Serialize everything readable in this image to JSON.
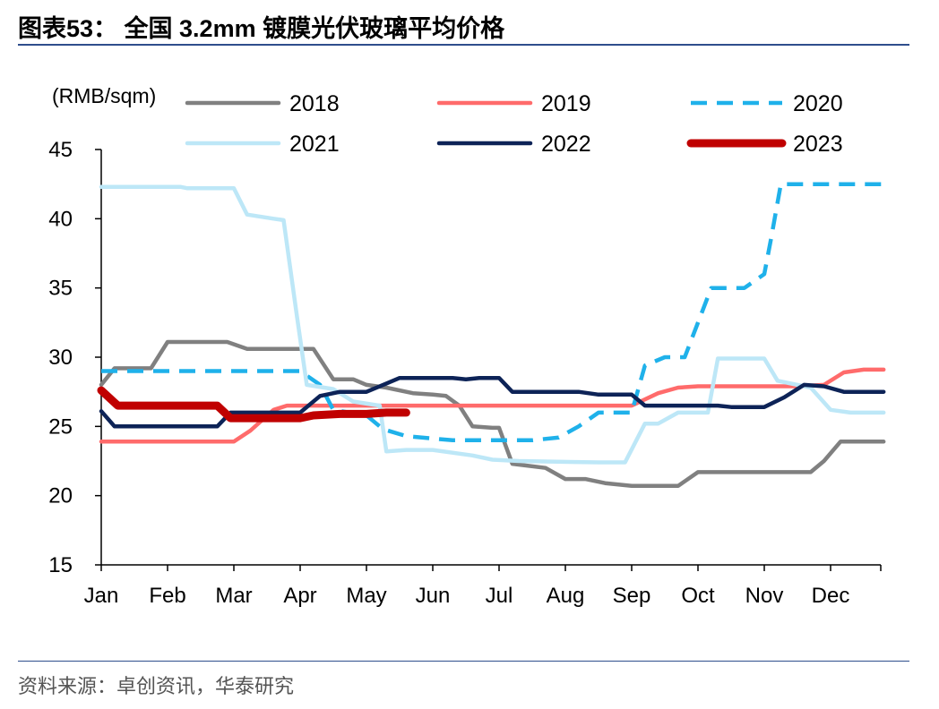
{
  "title": "图表53：  全国 3.2mm 镀膜光伏玻璃平均价格",
  "source": "资料来源：卓创资讯，华泰研究",
  "chart_data": {
    "type": "line",
    "ylabel": "(RMB/sqm)",
    "ylim": [
      15,
      45
    ],
    "yticks": [
      "15",
      "20",
      "25",
      "30",
      "35",
      "40",
      "45"
    ],
    "xlim": [
      0,
      11.8
    ],
    "xticks": [
      "Jan",
      "Feb",
      "Mar",
      "Apr",
      "May",
      "Jun",
      "Jul",
      "Aug",
      "Sep",
      "Oct",
      "Nov",
      "Dec"
    ],
    "grid": false,
    "legend": "top",
    "series": [
      {
        "name": "2018",
        "color": "#808080",
        "dash": false,
        "width": 4.5,
        "points": [
          [
            0,
            28.0
          ],
          [
            0.2,
            29.2
          ],
          [
            0.75,
            29.2
          ],
          [
            1.0,
            31.1
          ],
          [
            1.9,
            31.1
          ],
          [
            2.2,
            30.6
          ],
          [
            3.2,
            30.6
          ],
          [
            3.5,
            28.4
          ],
          [
            3.8,
            28.4
          ],
          [
            4.0,
            28.0
          ],
          [
            4.3,
            27.8
          ],
          [
            4.7,
            27.4
          ],
          [
            5.0,
            27.3
          ],
          [
            5.2,
            27.2
          ],
          [
            5.4,
            26.5
          ],
          [
            5.6,
            25.0
          ],
          [
            5.9,
            24.9
          ],
          [
            6.0,
            24.9
          ],
          [
            6.2,
            22.3
          ],
          [
            6.7,
            22.0
          ],
          [
            7.0,
            21.2
          ],
          [
            7.3,
            21.2
          ],
          [
            7.6,
            20.9
          ],
          [
            8.0,
            20.7
          ],
          [
            8.7,
            20.7
          ],
          [
            9.0,
            21.7
          ],
          [
            10.7,
            21.7
          ],
          [
            10.9,
            22.5
          ],
          [
            11.15,
            23.9
          ],
          [
            11.8,
            23.9
          ]
        ]
      },
      {
        "name": "2019",
        "color": "#ff6b6b",
        "dash": false,
        "width": 4.5,
        "points": [
          [
            0,
            23.9
          ],
          [
            2.0,
            23.9
          ],
          [
            2.25,
            24.7
          ],
          [
            2.6,
            26.2
          ],
          [
            2.8,
            26.5
          ],
          [
            8.0,
            26.5
          ],
          [
            8.4,
            27.4
          ],
          [
            8.7,
            27.8
          ],
          [
            9.0,
            27.9
          ],
          [
            10.5,
            27.9
          ],
          [
            10.9,
            28.0
          ],
          [
            11.2,
            28.9
          ],
          [
            11.5,
            29.1
          ],
          [
            11.8,
            29.1
          ]
        ]
      },
      {
        "name": "2020",
        "color": "#1fb1ea",
        "dash": true,
        "width": 4.5,
        "points": [
          [
            0,
            29.0
          ],
          [
            3.0,
            29.0
          ],
          [
            3.3,
            28.0
          ],
          [
            3.5,
            26.2
          ],
          [
            4.0,
            25.8
          ],
          [
            4.25,
            24.8
          ],
          [
            4.6,
            24.3
          ],
          [
            5.3,
            24.0
          ],
          [
            6.5,
            24.0
          ],
          [
            6.9,
            24.2
          ],
          [
            7.2,
            25.0
          ],
          [
            7.5,
            26.0
          ],
          [
            8.0,
            26.0
          ],
          [
            8.2,
            29.4
          ],
          [
            8.5,
            30.0
          ],
          [
            8.8,
            30.0
          ],
          [
            9.2,
            35.0
          ],
          [
            9.7,
            35.0
          ],
          [
            10.0,
            36.0
          ],
          [
            10.1,
            38.5
          ],
          [
            10.25,
            42.5
          ],
          [
            11.8,
            42.5
          ]
        ]
      },
      {
        "name": "2021",
        "color": "#bde7f7",
        "dash": false,
        "width": 4.5,
        "points": [
          [
            0,
            42.3
          ],
          [
            1.2,
            42.3
          ],
          [
            1.3,
            42.2
          ],
          [
            2.0,
            42.2
          ],
          [
            2.2,
            40.3
          ],
          [
            2.6,
            40.0
          ],
          [
            2.75,
            39.9
          ],
          [
            2.95,
            33.0
          ],
          [
            3.1,
            28.0
          ],
          [
            3.5,
            27.7
          ],
          [
            3.8,
            26.8
          ],
          [
            4.2,
            26.5
          ],
          [
            4.3,
            23.2
          ],
          [
            4.6,
            23.3
          ],
          [
            5.0,
            23.3
          ],
          [
            5.6,
            22.9
          ],
          [
            5.9,
            22.6
          ],
          [
            6.3,
            22.5
          ],
          [
            7.5,
            22.4
          ],
          [
            7.9,
            22.4
          ],
          [
            8.2,
            25.2
          ],
          [
            8.4,
            25.2
          ],
          [
            8.7,
            26.0
          ],
          [
            9.15,
            26.0
          ],
          [
            9.3,
            29.9
          ],
          [
            10.0,
            29.9
          ],
          [
            10.2,
            28.3
          ],
          [
            10.7,
            27.8
          ],
          [
            11.0,
            26.2
          ],
          [
            11.3,
            26.0
          ],
          [
            11.8,
            26.0
          ]
        ]
      },
      {
        "name": "2022",
        "color": "#0d2357",
        "dash": false,
        "width": 4.5,
        "points": [
          [
            0,
            26.1
          ],
          [
            0.2,
            25.0
          ],
          [
            1.75,
            25.0
          ],
          [
            1.95,
            26.0
          ],
          [
            3.0,
            26.0
          ],
          [
            3.3,
            27.2
          ],
          [
            3.6,
            27.5
          ],
          [
            4.0,
            27.5
          ],
          [
            4.3,
            28.1
          ],
          [
            4.5,
            28.5
          ],
          [
            5.3,
            28.5
          ],
          [
            5.5,
            28.4
          ],
          [
            5.7,
            28.5
          ],
          [
            6.0,
            28.5
          ],
          [
            6.2,
            27.5
          ],
          [
            7.2,
            27.5
          ],
          [
            7.5,
            27.3
          ],
          [
            8.0,
            27.3
          ],
          [
            8.2,
            26.5
          ],
          [
            9.3,
            26.5
          ],
          [
            9.5,
            26.4
          ],
          [
            10.0,
            26.4
          ],
          [
            10.3,
            27.1
          ],
          [
            10.6,
            28.0
          ],
          [
            10.9,
            27.9
          ],
          [
            11.2,
            27.5
          ],
          [
            11.8,
            27.5
          ]
        ]
      },
      {
        "name": "2023",
        "color": "#c00000",
        "dash": false,
        "width": 9,
        "points": [
          [
            0,
            27.6
          ],
          [
            0.25,
            26.5
          ],
          [
            1.75,
            26.5
          ],
          [
            1.95,
            25.6
          ],
          [
            3.0,
            25.6
          ],
          [
            3.2,
            25.8
          ],
          [
            3.6,
            25.9
          ],
          [
            4.0,
            25.9
          ],
          [
            4.3,
            26.0
          ],
          [
            4.6,
            26.0
          ],
          [
            4.5,
            26.0
          ]
        ]
      }
    ]
  }
}
